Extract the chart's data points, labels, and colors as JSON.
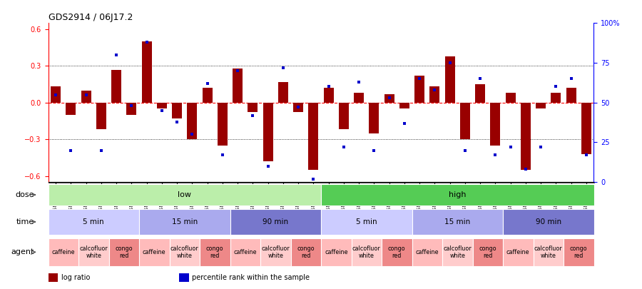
{
  "title": "GDS2914 / 06J17.2",
  "samples": [
    "GSM91440",
    "GSM91893",
    "GSM91428",
    "GSM91881",
    "GSM91434",
    "GSM91887",
    "GSM91443",
    "GSM91890",
    "GSM91430",
    "GSM91878",
    "GSM91436",
    "GSM91883",
    "GSM91438",
    "GSM91889",
    "GSM91426",
    "GSM91876",
    "GSM91432",
    "GSM91884",
    "GSM91439",
    "GSM91892",
    "GSM91427",
    "GSM91880",
    "GSM91433",
    "GSM91886",
    "GSM91442",
    "GSM91891",
    "GSM91429",
    "GSM91877",
    "GSM91435",
    "GSM91882",
    "GSM91437",
    "GSM91888",
    "GSM91444",
    "GSM91894",
    "GSM91431",
    "GSM91885"
  ],
  "log_ratios": [
    0.13,
    -0.1,
    0.1,
    -0.22,
    0.27,
    -0.1,
    0.5,
    -0.05,
    -0.13,
    -0.3,
    0.12,
    -0.35,
    0.28,
    -0.08,
    -0.48,
    0.17,
    -0.08,
    -0.55,
    0.12,
    -0.22,
    0.08,
    -0.25,
    0.07,
    -0.05,
    0.22,
    0.13,
    0.38,
    -0.3,
    0.15,
    -0.35,
    0.08,
    -0.55,
    -0.05,
    0.08,
    0.12,
    -0.42
  ],
  "percentile_ranks": [
    55,
    20,
    55,
    20,
    80,
    48,
    88,
    45,
    38,
    30,
    62,
    17,
    70,
    42,
    10,
    72,
    47,
    2,
    60,
    22,
    63,
    20,
    53,
    37,
    65,
    58,
    75,
    20,
    65,
    17,
    22,
    8,
    22,
    60,
    65,
    17
  ],
  "bar_color": "#990000",
  "dot_color": "#0000cc",
  "ylim": [
    -0.65,
    0.65
  ],
  "yticks": [
    -0.6,
    -0.3,
    0.0,
    0.3,
    0.6
  ],
  "dotted_lines": [
    -0.3,
    0.3
  ],
  "right_yticks": [
    0,
    25,
    50,
    75,
    100
  ],
  "right_ylabels": [
    "0",
    "25",
    "50",
    "75",
    "100%"
  ],
  "dose_groups": [
    {
      "label": "low",
      "start": 0,
      "end": 18,
      "color": "#bbeeaa"
    },
    {
      "label": "high",
      "start": 18,
      "end": 36,
      "color": "#55cc55"
    }
  ],
  "time_groups": [
    {
      "label": "5 min",
      "start": 0,
      "end": 6,
      "color": "#ccccff"
    },
    {
      "label": "15 min",
      "start": 6,
      "end": 12,
      "color": "#aaaaee"
    },
    {
      "label": "90 min",
      "start": 12,
      "end": 18,
      "color": "#7777cc"
    },
    {
      "label": "5 min",
      "start": 18,
      "end": 24,
      "color": "#ccccff"
    },
    {
      "label": "15 min",
      "start": 24,
      "end": 30,
      "color": "#aaaaee"
    },
    {
      "label": "90 min",
      "start": 30,
      "end": 36,
      "color": "#7777cc"
    }
  ],
  "agent_groups": [
    {
      "label": "caffeine",
      "start": 0,
      "end": 2,
      "color": "#ffbbbb"
    },
    {
      "label": "calcofluor\nwhite",
      "start": 2,
      "end": 4,
      "color": "#ffcccc"
    },
    {
      "label": "congo\nred",
      "start": 4,
      "end": 6,
      "color": "#ee8888"
    },
    {
      "label": "caffeine",
      "start": 6,
      "end": 8,
      "color": "#ffbbbb"
    },
    {
      "label": "calcofluor\nwhite",
      "start": 8,
      "end": 10,
      "color": "#ffcccc"
    },
    {
      "label": "congo\nred",
      "start": 10,
      "end": 12,
      "color": "#ee8888"
    },
    {
      "label": "caffeine",
      "start": 12,
      "end": 14,
      "color": "#ffbbbb"
    },
    {
      "label": "calcofluor\nwhite",
      "start": 14,
      "end": 16,
      "color": "#ffcccc"
    },
    {
      "label": "congo\nred",
      "start": 16,
      "end": 18,
      "color": "#ee8888"
    },
    {
      "label": "caffeine",
      "start": 18,
      "end": 20,
      "color": "#ffbbbb"
    },
    {
      "label": "calcofluor\nwhite",
      "start": 20,
      "end": 22,
      "color": "#ffcccc"
    },
    {
      "label": "congo\nred",
      "start": 22,
      "end": 24,
      "color": "#ee8888"
    },
    {
      "label": "caffeine",
      "start": 24,
      "end": 26,
      "color": "#ffbbbb"
    },
    {
      "label": "calcofluor\nwhite",
      "start": 26,
      "end": 28,
      "color": "#ffcccc"
    },
    {
      "label": "congo\nred",
      "start": 28,
      "end": 30,
      "color": "#ee8888"
    },
    {
      "label": "caffeine",
      "start": 30,
      "end": 32,
      "color": "#ffbbbb"
    },
    {
      "label": "calcofluor\nwhite",
      "start": 32,
      "end": 34,
      "color": "#ffcccc"
    },
    {
      "label": "congo\nred",
      "start": 34,
      "end": 36,
      "color": "#ee8888"
    }
  ],
  "legend_items": [
    {
      "label": "log ratio",
      "color": "#990000"
    },
    {
      "label": "percentile rank within the sample",
      "color": "#0000cc"
    }
  ],
  "bg_color": "#e8e8e8"
}
